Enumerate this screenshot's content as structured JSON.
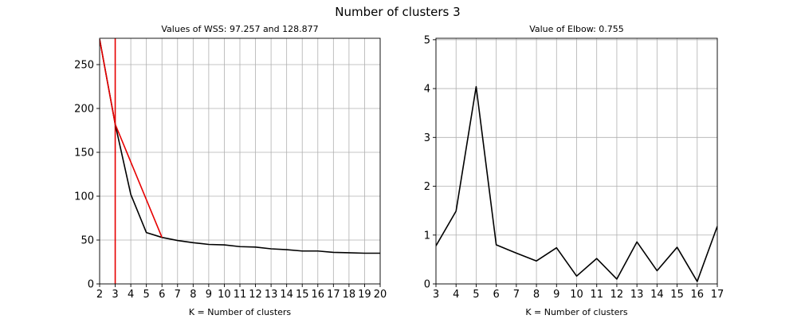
{
  "figure": {
    "suptitle": "Number of clusters 3"
  },
  "chart_data": [
    {
      "type": "line",
      "title": "Values of WSS: 97.257 and 128.877",
      "xlabel": "K = Number of clusters",
      "ylabel": "",
      "xlim": [
        2,
        20
      ],
      "ylim": [
        0,
        280
      ],
      "xticks": [
        2,
        3,
        4,
        5,
        6,
        7,
        8,
        9,
        10,
        11,
        12,
        13,
        14,
        15,
        16,
        17,
        18,
        19,
        20
      ],
      "yticks": [
        0,
        50,
        100,
        150,
        200,
        250
      ],
      "grid": true,
      "series": [
        {
          "color": "#000000",
          "x": [
            2,
            3,
            4,
            5,
            6,
            7,
            8,
            9,
            10,
            11,
            12,
            13,
            14,
            15,
            16,
            17,
            18,
            19,
            20
          ],
          "y": [
            279,
            182,
            102,
            58.5,
            53,
            49.5,
            47,
            45,
            44.5,
            42.5,
            42,
            40,
            39,
            37.5,
            37.5,
            36,
            35.5,
            35,
            35
          ]
        },
        {
          "color": "#e60000",
          "x": [
            2,
            3,
            6
          ],
          "y": [
            279,
            182,
            53
          ]
        }
      ],
      "vlines": [
        {
          "x": 3,
          "color": "#e60000"
        }
      ]
    },
    {
      "type": "line",
      "title": "Value of Elbow: 0.755",
      "xlabel": "K = Number of clusters",
      "ylabel": "",
      "xlim": [
        3,
        17
      ],
      "ylim": [
        0,
        5.03
      ],
      "xticks": [
        3,
        4,
        5,
        6,
        7,
        8,
        9,
        10,
        11,
        12,
        13,
        14,
        15,
        16,
        17
      ],
      "yticks": [
        0,
        1,
        2,
        3,
        4,
        5
      ],
      "grid": true,
      "series": [
        {
          "color": "#000000",
          "x": [
            3,
            4,
            5,
            6,
            7,
            8,
            9,
            10,
            11,
            12,
            13,
            14,
            15,
            16,
            17
          ],
          "y": [
            0.78,
            1.49,
            4.04,
            0.8,
            0.63,
            0.47,
            0.74,
            0.16,
            0.52,
            0.1,
            0.86,
            0.27,
            0.75,
            0.05,
            1.18
          ]
        }
      ],
      "vlines": []
    }
  ]
}
